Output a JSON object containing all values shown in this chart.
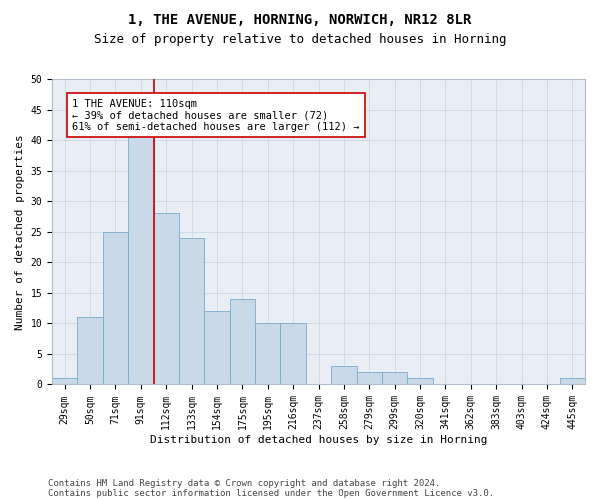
{
  "title1": "1, THE AVENUE, HORNING, NORWICH, NR12 8LR",
  "title2": "Size of property relative to detached houses in Horning",
  "xlabel": "Distribution of detached houses by size in Horning",
  "ylabel": "Number of detached properties",
  "bar_labels": [
    "29sqm",
    "50sqm",
    "71sqm",
    "91sqm",
    "112sqm",
    "133sqm",
    "154sqm",
    "175sqm",
    "195sqm",
    "216sqm",
    "237sqm",
    "258sqm",
    "279sqm",
    "299sqm",
    "320sqm",
    "341sqm",
    "362sqm",
    "383sqm",
    "403sqm",
    "424sqm",
    "445sqm"
  ],
  "bar_values": [
    1,
    11,
    25,
    41,
    28,
    24,
    12,
    14,
    10,
    10,
    0,
    3,
    2,
    2,
    1,
    0,
    0,
    0,
    0,
    0,
    1
  ],
  "bar_color": "#c9d9e8",
  "bar_edgecolor": "#7aaac8",
  "vline_color": "#cc0000",
  "annotation_text": "1 THE AVENUE: 110sqm\n← 39% of detached houses are smaller (72)\n61% of semi-detached houses are larger (112) →",
  "annotation_box_color": "#ffffff",
  "annotation_box_edgecolor": "#cc0000",
  "ylim": [
    0,
    50
  ],
  "yticks": [
    0,
    5,
    10,
    15,
    20,
    25,
    30,
    35,
    40,
    45,
    50
  ],
  "grid_color": "#c8d4de",
  "bg_color": "#e8eef4",
  "footer1": "Contains HM Land Registry data © Crown copyright and database right 2024.",
  "footer2": "Contains public sector information licensed under the Open Government Licence v3.0.",
  "title1_fontsize": 10,
  "title2_fontsize": 9,
  "xlabel_fontsize": 8,
  "ylabel_fontsize": 8,
  "tick_fontsize": 7,
  "annot_fontsize": 7.5,
  "footer_fontsize": 6.5
}
